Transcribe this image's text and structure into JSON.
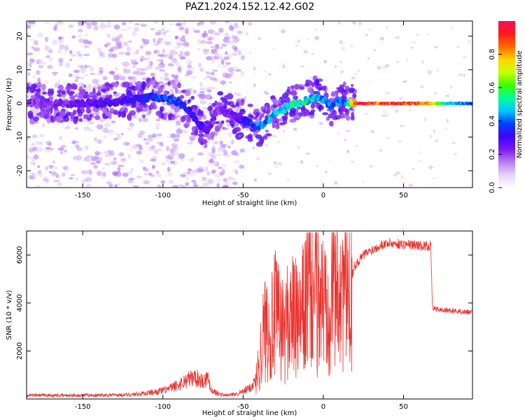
{
  "title": "PAZ1.2024.152.12.42.G02",
  "colors": {
    "snr_line": "#e8332f",
    "background": "#ffffff",
    "colormap": [
      "#ffffff",
      "#e6d2fb",
      "#b77df2",
      "#7a18f0",
      "#3a06f6",
      "#0040ff",
      "#00c8ff",
      "#00ff9a",
      "#39ff00",
      "#c8ff00",
      "#ffd400",
      "#ff6a00",
      "#ff1a1a",
      "#ff0a5a"
    ]
  },
  "chart_data": [
    {
      "type": "heatmap",
      "xlabel": "Height of straight line (km)",
      "ylabel": "Frequency (Hz)",
      "xlim": [
        -185,
        93
      ],
      "ylim": [
        -25,
        24.5
      ],
      "xticks": [
        -150,
        -100,
        -50,
        0,
        50
      ],
      "yticks": [
        -20,
        -10,
        0,
        10,
        20
      ],
      "colorbar": {
        "label": "Normalized spectral amplitude",
        "range": [
          0,
          1
        ],
        "ticks": [
          0.0,
          0.2,
          0.4,
          0.6,
          0.8
        ]
      },
      "ridge": {
        "x": [
          -185,
          -160,
          -140,
          -120,
          -105,
          -95,
          -88,
          -82,
          -78,
          -72,
          -65,
          -60,
          -55,
          -50,
          -45,
          -40,
          -35,
          -30,
          -25,
          -20,
          -15,
          -10,
          -5,
          0,
          5,
          10,
          15,
          20,
          40,
          60,
          80,
          93
        ],
        "freq": [
          0,
          0,
          0,
          1,
          2,
          1,
          0,
          -3,
          -6,
          -8,
          -2,
          -3,
          -4,
          -5,
          -6,
          -7,
          -5,
          -3,
          -2,
          0,
          0,
          1,
          2,
          1,
          -1,
          1,
          0,
          0,
          0,
          0,
          0,
          0
        ],
        "amplitude": [
          0.2,
          0.22,
          0.28,
          0.3,
          0.35,
          0.4,
          0.35,
          0.3,
          0.3,
          0.25,
          0.2,
          0.22,
          0.25,
          0.3,
          0.35,
          0.4,
          0.42,
          0.45,
          0.48,
          0.5,
          0.55,
          0.5,
          0.45,
          0.42,
          0.4,
          0.4,
          0.42,
          0.95,
          0.9,
          0.88,
          0.45,
          0.4
        ]
      }
    },
    {
      "type": "line",
      "xlabel": "Height of straight line (km)",
      "ylabel": "SNR (10 * v/v)",
      "xlim": [
        -185,
        93
      ],
      "ylim": [
        0,
        7000
      ],
      "xticks": [
        -150,
        -100,
        -50,
        0,
        50
      ],
      "yticks": [
        2000,
        4000,
        6000
      ],
      "series": [
        {
          "x": [
            -185,
            -160,
            -140,
            -120,
            -110,
            -100,
            -95,
            -90,
            -85,
            -80,
            -75,
            -72,
            -70,
            -65,
            -60,
            -55,
            -50,
            -45,
            -42,
            -40,
            -38,
            -35,
            -32,
            -30,
            -25,
            -20,
            -15,
            -10,
            -5,
            0,
            5,
            10,
            15,
            20,
            25,
            30,
            35,
            40,
            50,
            60,
            65,
            67,
            68,
            70,
            75,
            80,
            85,
            93
          ],
          "y": [
            150,
            150,
            160,
            180,
            250,
            350,
            450,
            600,
            800,
            900,
            750,
            900,
            400,
            200,
            150,
            200,
            300,
            500,
            800,
            1500,
            2500,
            3200,
            3000,
            3500,
            2800,
            3600,
            3000,
            4300,
            4500,
            4000,
            4800,
            5000,
            4600,
            5600,
            6000,
            6200,
            6400,
            6500,
            6450,
            6400,
            6380,
            6400,
            3800,
            3750,
            3700,
            3680,
            3650,
            3620
          ]
        }
      ]
    }
  ]
}
